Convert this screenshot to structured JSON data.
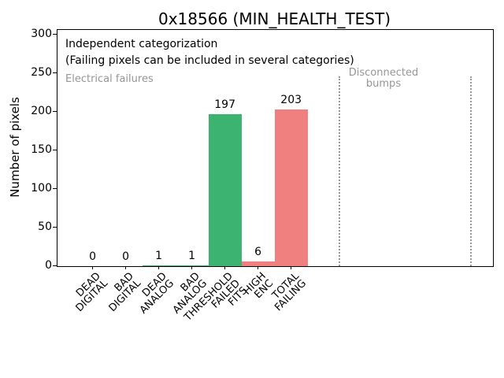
{
  "title": "0x18566 (MIN_HEALTH_TEST)",
  "annotations": {
    "independent": "Independent categorization\n(Failing pixels can be included in several categories)",
    "electrical": "Electrical failures",
    "disconnected": "Disconnected\nbumps"
  },
  "colors": {
    "bar_green": "#3cb371",
    "bar_red": "#f08080",
    "gray_text": "#969696",
    "separator_gray": "#999999",
    "axis_black": "#000000",
    "background": "#ffffff"
  },
  "chart_data": {
    "type": "bar",
    "title": "0x18566 (MIN_HEALTH_TEST)",
    "xlabel": "",
    "ylabel": "Number of pixels",
    "categories": [
      "DEAD\nDIGITAL",
      "BAD\nDIGITAL",
      "DEAD\nANALOG",
      "BAD\nANALOG",
      "THRESHOLD\nFAILED\nFITS",
      "HIGH\nENC",
      "TOTAL\nFAILING"
    ],
    "values": [
      0,
      0,
      1,
      1,
      197,
      6,
      203
    ],
    "bar_colors": [
      "#3cb371",
      "#3cb371",
      "#3cb371",
      "#3cb371",
      "#3cb371",
      "#f08080",
      "#f08080"
    ],
    "bar_color_overrides": {
      "5": "#3cb371",
      "6": "#f08080"
    },
    "value_labels": [
      "0",
      "0",
      "1",
      "1",
      "197",
      "6",
      "203"
    ],
    "yticks": [
      0,
      50,
      100,
      150,
      200,
      250,
      300
    ],
    "ylim": [
      0,
      306
    ],
    "xlim": [
      -1.06,
      12.1
    ],
    "bar_width": 1.0,
    "grid": false,
    "legend": null,
    "separators": {
      "x_values": [
        7.46,
        11.43
      ],
      "y_top_value": 246,
      "style": "dotted"
    },
    "text_annotations": [
      {
        "text": "Independent categorization",
        "color": "black"
      },
      {
        "text": "(Failing pixels can be included in several categories)",
        "color": "black"
      },
      {
        "text": "Electrical failures",
        "color": "gray"
      },
      {
        "text": "Disconnected\nbumps",
        "color": "gray"
      }
    ]
  }
}
